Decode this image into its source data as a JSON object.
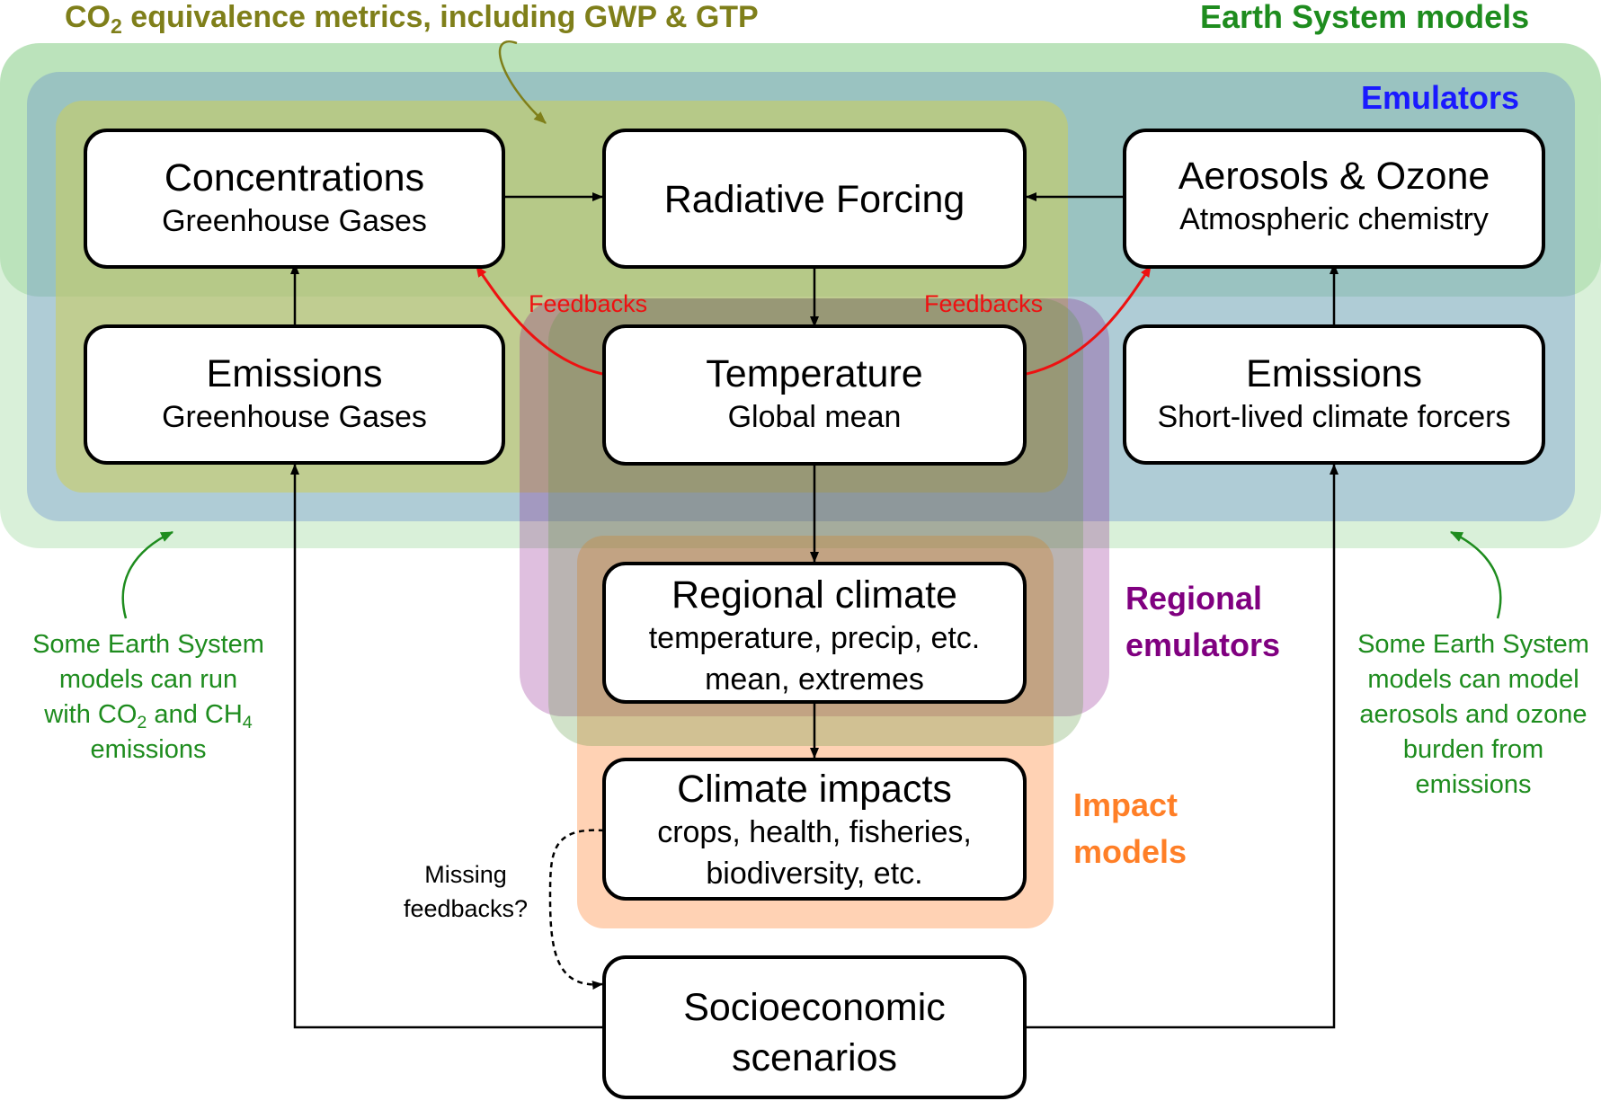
{
  "title": {
    "metrics_prefix": "CO",
    "metrics_sub": "2",
    "metrics_rest": " equivalence metrics, including GWP & GTP",
    "earth_system_models": "Earth System models",
    "emulators": "Emulators"
  },
  "groups": {
    "regional_emulators_line1": "Regional",
    "regional_emulators_line2": "emulators",
    "impact_models_line1": "Impact",
    "impact_models_line2": "models"
  },
  "nodes": {
    "concentrations": {
      "title": "Concentrations",
      "subtitle": "Greenhouse Gases"
    },
    "radiative_forcing": {
      "title": "Radiative Forcing"
    },
    "aerosols_ozone": {
      "title": "Aerosols & Ozone",
      "subtitle": "Atmospheric chemistry"
    },
    "emissions_ghg": {
      "title": "Emissions",
      "subtitle": "Greenhouse Gases"
    },
    "temperature": {
      "title": "Temperature",
      "subtitle": "Global mean"
    },
    "emissions_slcf": {
      "title": "Emissions",
      "subtitle": "Short-lived climate forcers"
    },
    "regional_climate": {
      "title": "Regional climate",
      "line2": "temperature, precip, etc.",
      "line3": "mean, extremes"
    },
    "climate_impacts": {
      "title": "Climate impacts",
      "line2": "crops, health, fisheries,",
      "line3": "biodiversity, etc."
    },
    "socioeconomic": {
      "line1": "Socioeconomic",
      "line2": "scenarios"
    }
  },
  "feedback_labels": {
    "left": "Feedbacks",
    "right": "Feedbacks",
    "missing_line1": "Missing",
    "missing_line2": "feedbacks?"
  },
  "notes": {
    "left": {
      "line1": "Some Earth System",
      "line2": "models can run",
      "line3_a": "with CO",
      "line3_sub1": "2",
      "line3_b": " and CH",
      "line3_sub2": "4",
      "line4": "emissions"
    },
    "right": {
      "line1": "Some Earth System",
      "line2": "models can model",
      "line3": "aerosols and ozone",
      "line4": "burden from",
      "line5": "emissions"
    }
  },
  "colors": {
    "earth_system_models": "#1e8c1e",
    "emulators": "#1a1aff",
    "metrics": "#7f7f1a",
    "regional_emulators": "#800080",
    "impact_models": "#ff7f27",
    "feedbacks": "#ee1111",
    "notes": "#1e8c1e"
  }
}
